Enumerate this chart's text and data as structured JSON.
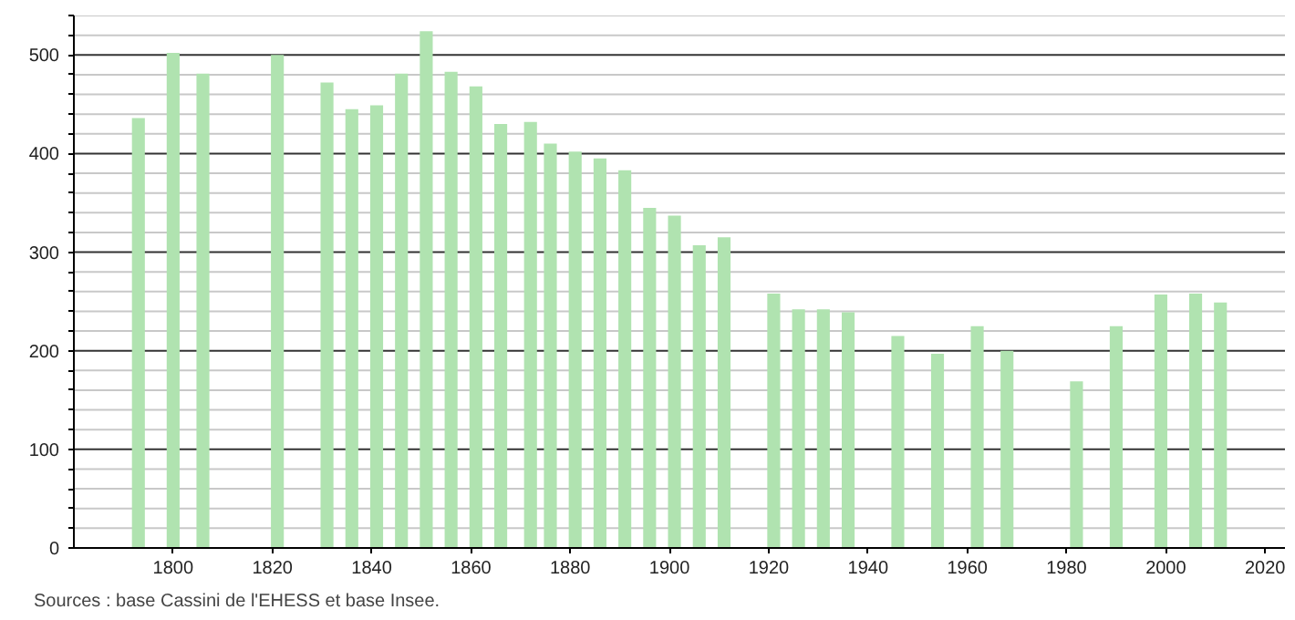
{
  "chart_data": {
    "type": "bar",
    "x": [
      1793,
      1800,
      1806,
      1821,
      1831,
      1836,
      1841,
      1846,
      1851,
      1856,
      1861,
      1866,
      1872,
      1876,
      1881,
      1886,
      1891,
      1896,
      1901,
      1906,
      1911,
      1921,
      1926,
      1931,
      1936,
      1946,
      1954,
      1962,
      1968,
      1982,
      1990,
      1999,
      2006,
      2011
    ],
    "values": [
      436,
      502,
      481,
      500,
      472,
      445,
      449,
      481,
      524,
      483,
      468,
      430,
      432,
      410,
      402,
      395,
      383,
      345,
      337,
      307,
      315,
      258,
      242,
      242,
      239,
      215,
      197,
      225,
      200,
      169,
      225,
      257,
      258,
      249
    ],
    "color": "#b0e3b0",
    "xlim": [
      1780,
      2024
    ],
    "xticks": [
      1800,
      1820,
      1840,
      1860,
      1880,
      1900,
      1920,
      1940,
      1960,
      1980,
      2000,
      2020
    ],
    "ylim": [
      0,
      540
    ],
    "yticks": [
      0,
      {
        "value": 20,
        "label": null
      },
      {
        "value": 40,
        "label": null
      },
      {
        "value": 60,
        "label": null
      },
      {
        "value": 80,
        "label": null
      },
      100,
      {
        "value": 120,
        "label": null
      },
      {
        "value": 140,
        "label": null
      },
      {
        "value": 160,
        "label": null
      },
      {
        "value": 180,
        "label": null
      },
      200,
      {
        "value": 220,
        "label": null
      },
      {
        "value": 240,
        "label": null
      },
      {
        "value": 260,
        "label": null
      },
      {
        "value": 280,
        "label": null
      },
      300,
      {
        "value": 320,
        "label": null
      },
      {
        "value": 340,
        "label": null
      },
      {
        "value": 360,
        "label": null
      },
      {
        "value": 380,
        "label": null
      },
      400,
      {
        "value": 420,
        "label": null
      },
      {
        "value": 440,
        "label": null
      },
      {
        "value": 460,
        "label": null
      },
      {
        "value": 480,
        "label": null
      },
      500,
      {
        "value": 520,
        "label": null
      },
      {
        "value": 540,
        "label": null
      }
    ],
    "grid": "y",
    "annotations": [
      "Sources : base Cassini de l'EHESS et base Insee."
    ]
  }
}
